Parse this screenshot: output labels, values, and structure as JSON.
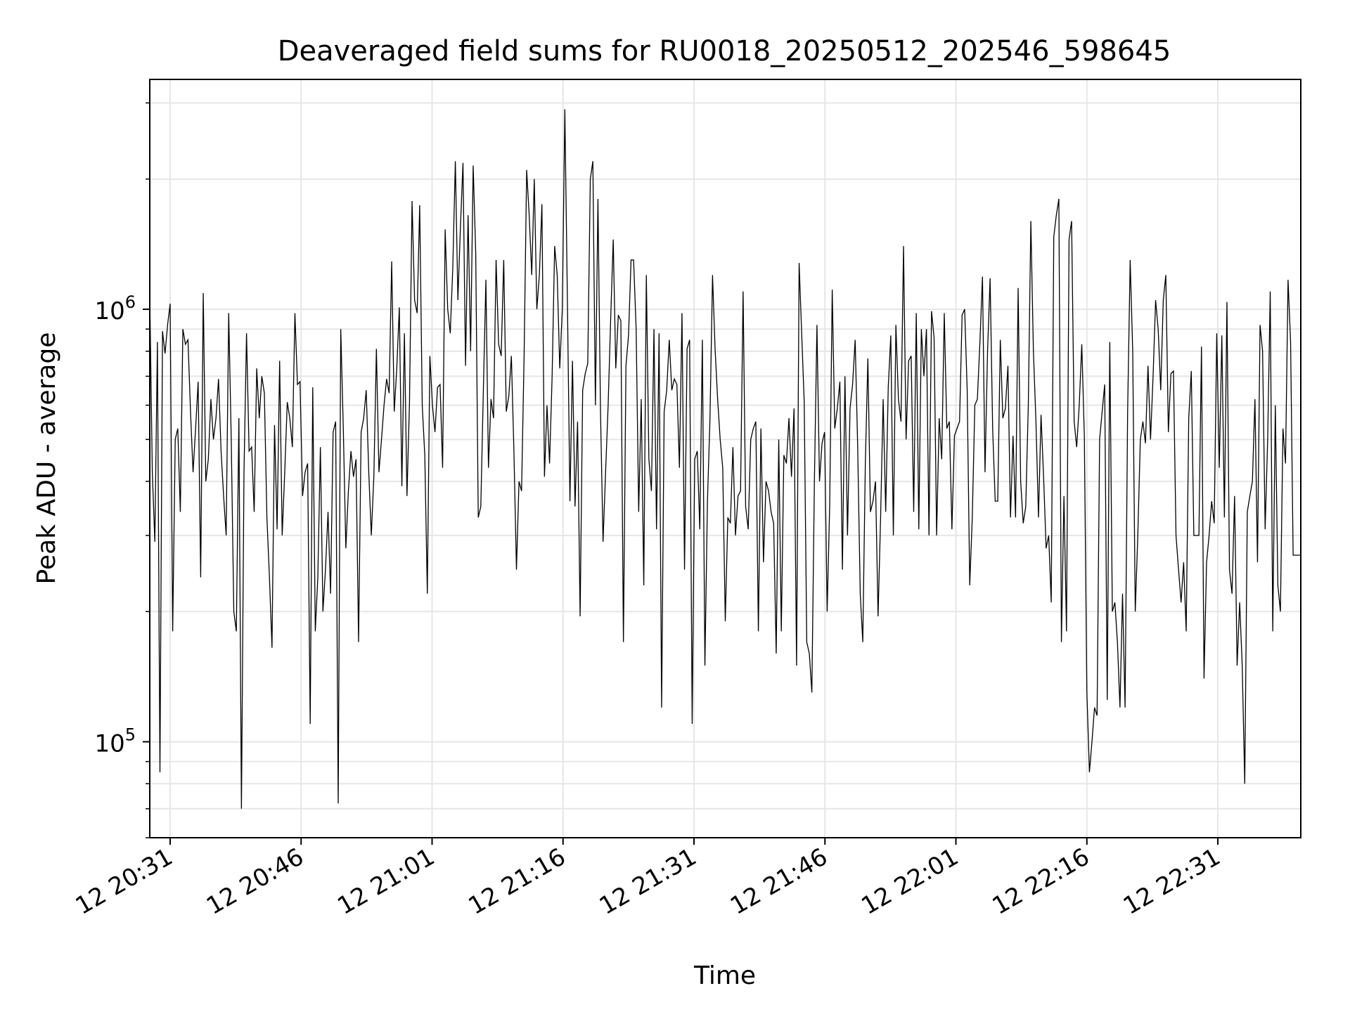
{
  "chart_data": {
    "type": "line",
    "title": "Deaveraged field sums for RU0018_20250512_202546_598645",
    "xlabel": "Time",
    "ylabel": "Peak ADU - average",
    "yscale": "log",
    "ylim": [
      60000,
      3400000
    ],
    "xlim": [
      "2025-05-12T20:28:40",
      "2025-05-12T22:40:30"
    ],
    "x_ticks": [
      {
        "t": "2025-05-12T20:31:00",
        "label": "12 20:31"
      },
      {
        "t": "2025-05-12T20:46:00",
        "label": "12 20:46"
      },
      {
        "t": "2025-05-12T21:01:00",
        "label": "12 21:01"
      },
      {
        "t": "2025-05-12T21:16:00",
        "label": "12 21:16"
      },
      {
        "t": "2025-05-12T21:31:00",
        "label": "12 21:31"
      },
      {
        "t": "2025-05-12T21:46:00",
        "label": "12 21:46"
      },
      {
        "t": "2025-05-12T22:01:00",
        "label": "12 22:01"
      },
      {
        "t": "2025-05-12T22:16:00",
        "label": "12 22:16"
      },
      {
        "t": "2025-05-12T22:31:00",
        "label": "12 22:31"
      }
    ],
    "y_ticks": [
      {
        "value": 100000,
        "base": "10",
        "exp": "5"
      },
      {
        "value": 1000000,
        "base": "10",
        "exp": "6"
      }
    ],
    "grid": true,
    "line_color": "#000000",
    "grid_color": "#e6e6e6",
    "series": [
      {
        "x_start": "2025-05-12T20:28:40",
        "x_end": "2025-05-12T22:40:30",
        "values": [
          1080000,
          420000,
          290000,
          840000,
          85000,
          890000,
          790000,
          920000,
          1030000,
          180000,
          500000,
          530000,
          340000,
          900000,
          830000,
          850000,
          580000,
          420000,
          530000,
          680000,
          240000,
          1090000,
          400000,
          450000,
          620000,
          500000,
          560000,
          690000,
          470000,
          370000,
          300000,
          980000,
          500000,
          200000,
          180000,
          560000,
          70000,
          420000,
          880000,
          470000,
          480000,
          340000,
          730000,
          560000,
          700000,
          640000,
          330000,
          240000,
          165000,
          540000,
          310000,
          760000,
          300000,
          420000,
          610000,
          560000,
          480000,
          980000,
          670000,
          680000,
          370000,
          420000,
          440000,
          110000,
          660000,
          180000,
          240000,
          480000,
          200000,
          250000,
          340000,
          220000,
          520000,
          550000,
          72000,
          900000,
          530000,
          280000,
          380000,
          470000,
          410000,
          450000,
          170000,
          520000,
          560000,
          650000,
          420000,
          300000,
          410000,
          810000,
          420000,
          500000,
          600000,
          690000,
          640000,
          1290000,
          580000,
          730000,
          1010000,
          390000,
          880000,
          370000,
          610000,
          1780000,
          1050000,
          980000,
          1740000,
          600000,
          460000,
          220000,
          780000,
          600000,
          520000,
          660000,
          670000,
          430000,
          1530000,
          1000000,
          880000,
          1250000,
          2200000,
          1050000,
          1550000,
          2180000,
          740000,
          1650000,
          800000,
          2150000,
          1350000,
          330000,
          350000,
          650000,
          1170000,
          430000,
          620000,
          560000,
          1300000,
          830000,
          780000,
          1300000,
          580000,
          630000,
          780000,
          470000,
          250000,
          400000,
          380000,
          780000,
          2100000,
          1650000,
          1200000,
          2000000,
          1000000,
          1200000,
          1750000,
          410000,
          600000,
          440000,
          700000,
          1400000,
          1200000,
          730000,
          1000000,
          2900000,
          1050000,
          360000,
          760000,
          350000,
          550000,
          195000,
          650000,
          710000,
          750000,
          2000000,
          2200000,
          600000,
          1800000,
          580000,
          290000,
          420000,
          600000,
          950000,
          1450000,
          730000,
          970000,
          940000,
          170000,
          740000,
          870000,
          1300000,
          1300000,
          900000,
          340000,
          620000,
          230000,
          1200000,
          450000,
          380000,
          900000,
          310000,
          880000,
          120000,
          580000,
          650000,
          850000,
          650000,
          690000,
          670000,
          430000,
          980000,
          250000,
          810000,
          850000,
          110000,
          450000,
          470000,
          310000,
          850000,
          150000,
          360000,
          560000,
          1200000,
          810000,
          620000,
          500000,
          430000,
          190000,
          330000,
          320000,
          480000,
          300000,
          370000,
          380000,
          1100000,
          350000,
          310000,
          500000,
          530000,
          550000,
          180000,
          530000,
          260000,
          400000,
          380000,
          340000,
          320000,
          160000,
          500000,
          180000,
          460000,
          440000,
          560000,
          410000,
          590000,
          150000,
          1280000,
          880000,
          610000,
          170000,
          160000,
          130000,
          400000,
          920000,
          400000,
          490000,
          520000,
          200000,
          350000,
          1110000,
          530000,
          590000,
          680000,
          250000,
          700000,
          300000,
          590000,
          670000,
          850000,
          480000,
          220000,
          170000,
          440000,
          770000,
          340000,
          360000,
          400000,
          195000,
          330000,
          620000,
          340000,
          660000,
          870000,
          300000,
          920000,
          620000,
          550000,
          1400000,
          500000,
          760000,
          780000,
          340000,
          980000,
          310000,
          900000,
          700000,
          900000,
          300000,
          990000,
          860000,
          300000,
          560000,
          450000,
          980000,
          530000,
          550000,
          310000,
          510000,
          530000,
          550000,
          970000,
          1000000,
          650000,
          230000,
          330000,
          600000,
          620000,
          840000,
          1190000,
          420000,
          800000,
          1180000,
          530000,
          360000,
          360000,
          850000,
          560000,
          590000,
          740000,
          330000,
          510000,
          330000,
          1120000,
          400000,
          320000,
          350000,
          600000,
          1600000,
          800000,
          550000,
          330000,
          570000,
          410000,
          280000,
          300000,
          210000,
          1470000,
          1650000,
          1800000,
          170000,
          370000,
          180000,
          1450000,
          1600000,
          550000,
          480000,
          600000,
          830000,
          510000,
          130000,
          85000,
          100000,
          120000,
          115000,
          500000,
          580000,
          670000,
          125000,
          840000,
          200000,
          210000,
          170000,
          120000,
          220000,
          120000,
          580000,
          1300000,
          800000,
          200000,
          300000,
          500000,
          550000,
          490000,
          740000,
          500000,
          700000,
          1050000,
          900000,
          650000,
          1050000,
          1200000,
          520000,
          710000,
          720000,
          300000,
          250000,
          210000,
          260000,
          180000,
          560000,
          720000,
          300000,
          300000,
          300000,
          820000,
          140000,
          260000,
          300000,
          360000,
          320000,
          880000,
          430000,
          870000,
          330000,
          1040000,
          250000,
          220000,
          370000,
          150000,
          210000,
          150000,
          80000,
          340000,
          370000,
          400000,
          620000,
          260000,
          920000,
          800000,
          310000,
          500000,
          1100000,
          180000,
          600000,
          230000,
          200000,
          530000,
          440000,
          1170000,
          840000,
          270000,
          270000,
          270000,
          270000
        ]
      }
    ]
  }
}
